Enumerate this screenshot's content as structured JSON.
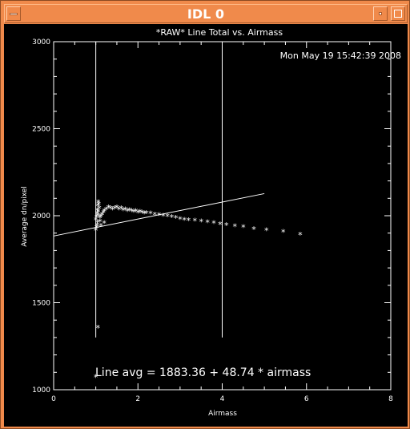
{
  "window": {
    "title": "IDL 0"
  },
  "chart_data": {
    "type": "scatter",
    "title": "*RAW* Line Total vs. Airmass",
    "timestamp": "Mon May 19 15:42:39 2008",
    "xlabel": "Airmass",
    "ylabel": "Average dn/pixel",
    "xlim": [
      0,
      8
    ],
    "ylim": [
      1000,
      3000
    ],
    "xticks": [
      "0",
      "2",
      "4",
      "6",
      "8"
    ],
    "yticks": [
      "1000",
      "1500",
      "2000",
      "2500",
      "3000"
    ],
    "vertical_lines_x": [
      1.0,
      4.0
    ],
    "vertical_lines_y_range": [
      1300,
      3000
    ],
    "fit_line": {
      "intercept": 1883.36,
      "slope": 48.74,
      "x_range": [
        0,
        5.0
      ]
    },
    "fit_label": "Line avg = 1883.36 + 48.74 * airmass",
    "points": [
      [
        1.0,
        1075
      ],
      [
        1.05,
        1360
      ],
      [
        1.0,
        1920
      ],
      [
        1.02,
        1935
      ],
      [
        1.03,
        1950
      ],
      [
        1.04,
        1965
      ],
      [
        1.0,
        1980
      ],
      [
        1.02,
        1995
      ],
      [
        1.05,
        2005
      ],
      [
        1.03,
        2015
      ],
      [
        1.06,
        2025
      ],
      [
        1.04,
        2035
      ],
      [
        1.08,
        2045
      ],
      [
        1.05,
        2060
      ],
      [
        1.07,
        2070
      ],
      [
        1.06,
        2080
      ],
      [
        1.1,
        1990
      ],
      [
        1.12,
        2000
      ],
      [
        1.15,
        2010
      ],
      [
        1.18,
        2020
      ],
      [
        1.2,
        2030
      ],
      [
        1.25,
        2040
      ],
      [
        1.3,
        2050
      ],
      [
        1.35,
        2045
      ],
      [
        1.4,
        2040
      ],
      [
        1.45,
        2045
      ],
      [
        1.5,
        2050
      ],
      [
        1.55,
        2040
      ],
      [
        1.6,
        2045
      ],
      [
        1.65,
        2035
      ],
      [
        1.7,
        2040
      ],
      [
        1.75,
        2030
      ],
      [
        1.8,
        2035
      ],
      [
        1.85,
        2030
      ],
      [
        1.9,
        2025
      ],
      [
        1.95,
        2030
      ],
      [
        2.0,
        2020
      ],
      [
        2.05,
        2025
      ],
      [
        2.1,
        2020
      ],
      [
        2.15,
        2015
      ],
      [
        2.2,
        2018
      ],
      [
        2.3,
        2015
      ],
      [
        2.4,
        2010
      ],
      [
        2.5,
        2008
      ],
      [
        2.6,
        2003
      ],
      [
        2.7,
        2000
      ],
      [
        2.8,
        1995
      ],
      [
        2.9,
        1990
      ],
      [
        3.0,
        1985
      ],
      [
        3.1,
        1980
      ],
      [
        3.2,
        1978
      ],
      [
        3.35,
        1975
      ],
      [
        3.5,
        1970
      ],
      [
        3.65,
        1965
      ],
      [
        3.8,
        1960
      ],
      [
        3.95,
        1955
      ],
      [
        4.1,
        1950
      ],
      [
        4.3,
        1943
      ],
      [
        4.5,
        1937
      ],
      [
        4.75,
        1927
      ],
      [
        5.05,
        1920
      ],
      [
        5.45,
        1910
      ],
      [
        5.85,
        1895
      ],
      [
        1.12,
        1945
      ],
      [
        1.2,
        1960
      ],
      [
        1.1,
        1970
      ]
    ]
  }
}
